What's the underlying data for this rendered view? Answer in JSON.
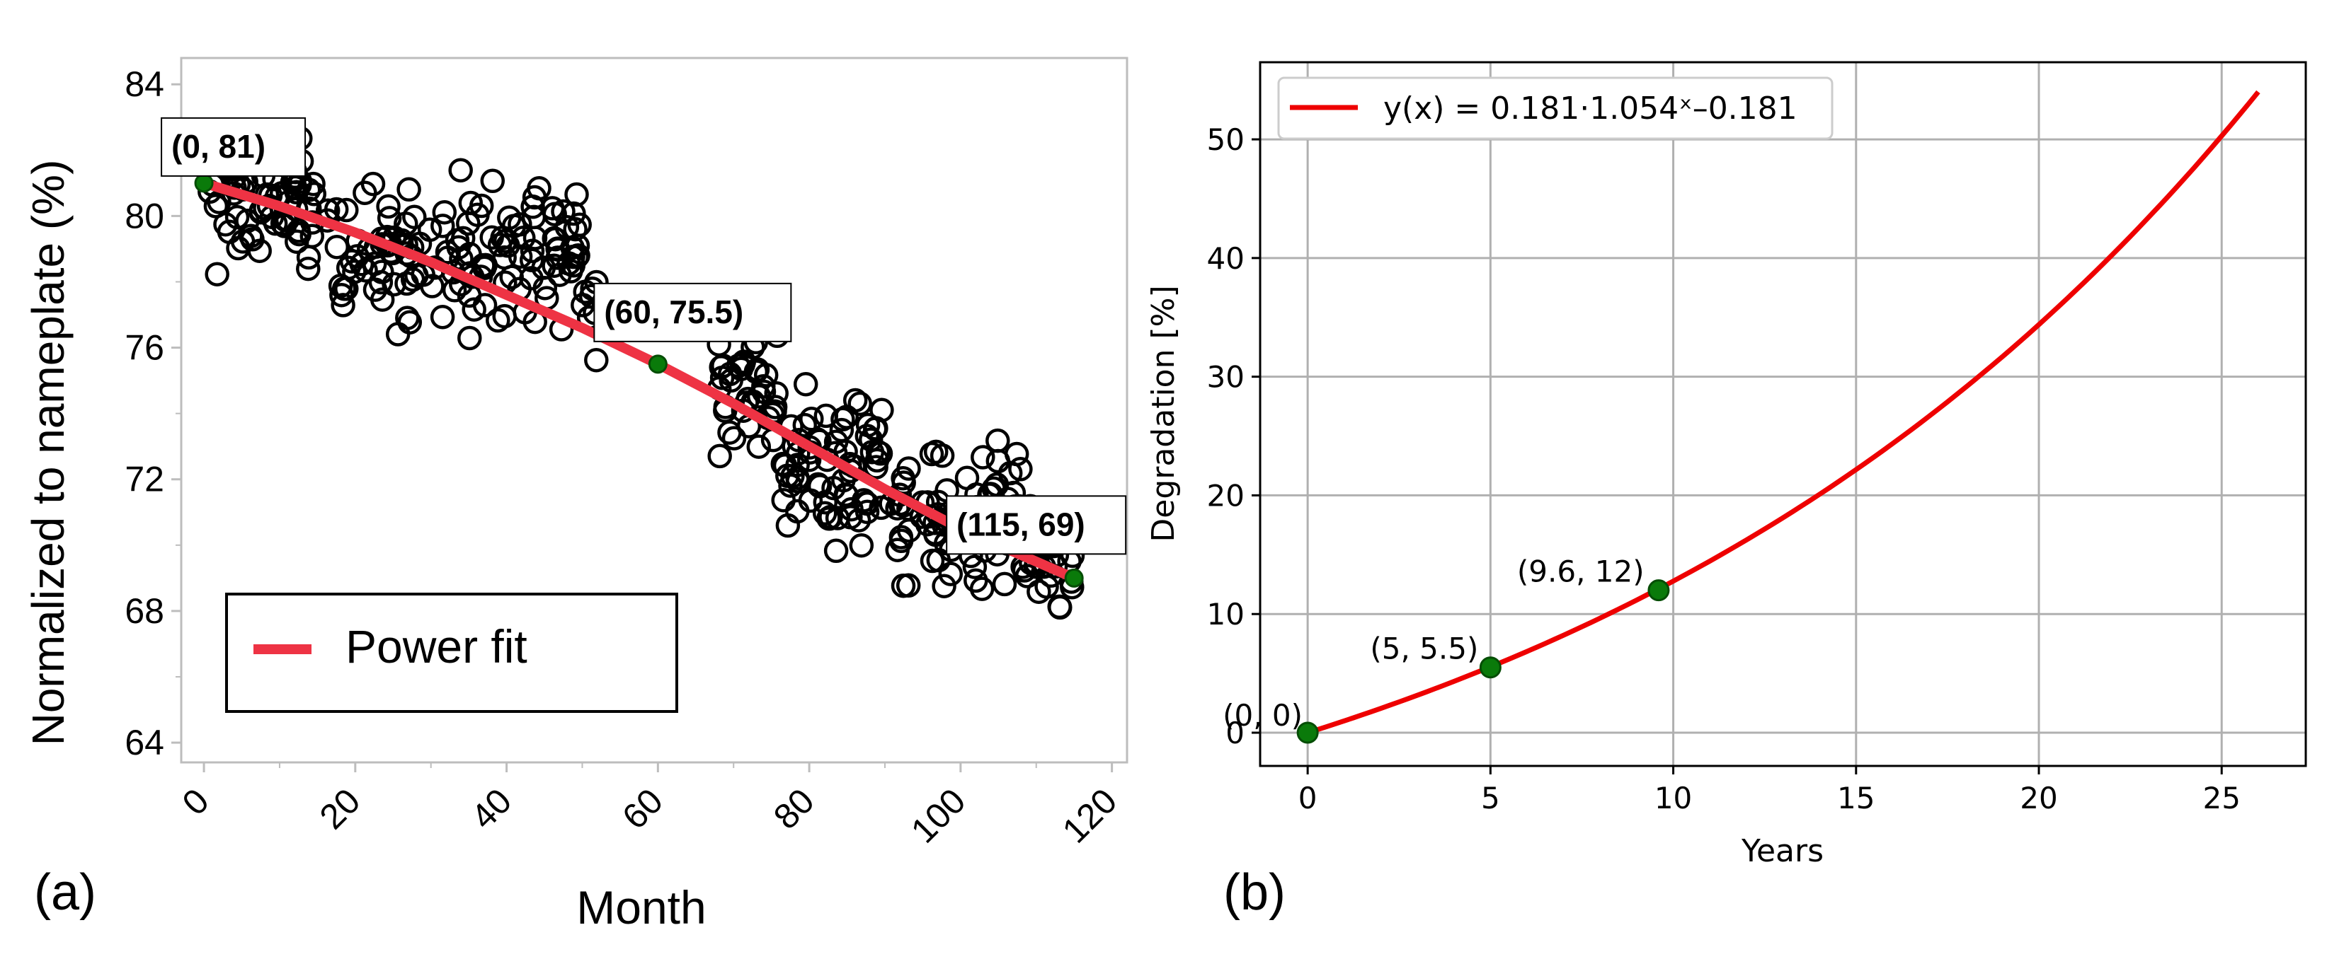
{
  "chart_data": [
    {
      "panel_label": "(a)",
      "type": "scatter",
      "xlabel": "Month",
      "ylabel": "Normalized to nameplate  (%)",
      "xlim": [
        -3,
        122
      ],
      "ylim": [
        63.4,
        84.8
      ],
      "x_ticks": [
        "0",
        "20",
        "40",
        "60",
        "80",
        "100",
        "120"
      ],
      "y_ticks": [
        "64",
        "68",
        "72",
        "76",
        "80",
        "84"
      ],
      "grid": false,
      "legend": {
        "position": "lower-left",
        "entries": [
          "Power fit"
        ]
      },
      "colors": {
        "fit": "#ee3344",
        "markers": "#000000",
        "highlight": "#0a7a0a"
      },
      "series": [
        {
          "name": "Power fit",
          "kind": "line",
          "x": [
            0,
            10,
            20,
            30,
            40,
            50,
            60,
            70,
            80,
            90,
            100,
            110,
            115
          ],
          "y": [
            81.0,
            80.3,
            79.5,
            78.6,
            77.6,
            76.6,
            75.5,
            74.3,
            73.0,
            71.7,
            70.5,
            69.5,
            69.0
          ]
        }
      ],
      "scatter_clusters": [
        {
          "x_range": [
            0,
            18
          ],
          "y_center": 80.3,
          "y_spread": 1.6,
          "count": 75
        },
        {
          "x_range": [
            18,
            50
          ],
          "y_center": 78.9,
          "y_spread": 1.8,
          "count": 135
        },
        {
          "x_range": [
            50,
            52
          ],
          "y_center": 77.0,
          "y_spread": 1.6,
          "count": 8
        },
        {
          "x_range": [
            68,
            76
          ],
          "y_center": 74.6,
          "y_spread": 1.6,
          "count": 38
        },
        {
          "x_range": [
            76,
            90
          ],
          "y_center": 72.5,
          "y_spread": 1.8,
          "count": 70
        },
        {
          "x_range": [
            90,
            108
          ],
          "y_center": 70.9,
          "y_spread": 1.7,
          "count": 80
        },
        {
          "x_range": [
            108,
            115
          ],
          "y_center": 69.7,
          "y_spread": 1.3,
          "count": 32
        }
      ],
      "annotations": [
        {
          "text": "(0, 81)",
          "x": 0,
          "y": 81
        },
        {
          "text": "(60, 75.5)",
          "x": 60,
          "y": 75.5
        },
        {
          "text": "(115, 69)",
          "x": 115,
          "y": 69
        }
      ]
    },
    {
      "panel_label": "(b)",
      "type": "line",
      "xlabel": "Years",
      "ylabel": "Degradation [%]",
      "xlim": [
        -1.3,
        27.3
      ],
      "ylim": [
        -2.8,
        56.5
      ],
      "x_ticks": [
        "0",
        "5",
        "10",
        "15",
        "20",
        "25"
      ],
      "y_ticks": [
        "0",
        "10",
        "20",
        "30",
        "40",
        "50"
      ],
      "grid": true,
      "legend": {
        "position": "top-left",
        "entries": [
          "y(x) = 0.181·1.054ˣ–0.181"
        ]
      },
      "colors": {
        "curve": "#ee0000",
        "points": "#0a7a0a",
        "grid": "#b0b0b0"
      },
      "series": [
        {
          "name": "y(x) = 0.181·1.054ˣ–0.181",
          "x": [
            0,
            2,
            4,
            6,
            8,
            10,
            12,
            14,
            16,
            18,
            20,
            22,
            24,
            26
          ],
          "y": [
            0.0,
            2.1,
            4.3,
            6.8,
            9.5,
            12.5,
            15.8,
            19.6,
            23.6,
            28.0,
            33.0,
            38.3,
            44.0,
            54.0
          ]
        }
      ],
      "points": [
        {
          "label": "(0, 0)",
          "x": 0,
          "y": 0
        },
        {
          "label": "(5, 5.5)",
          "x": 5,
          "y": 5.5
        },
        {
          "label": "(9.6, 12)",
          "x": 9.6,
          "y": 12
        }
      ]
    }
  ]
}
